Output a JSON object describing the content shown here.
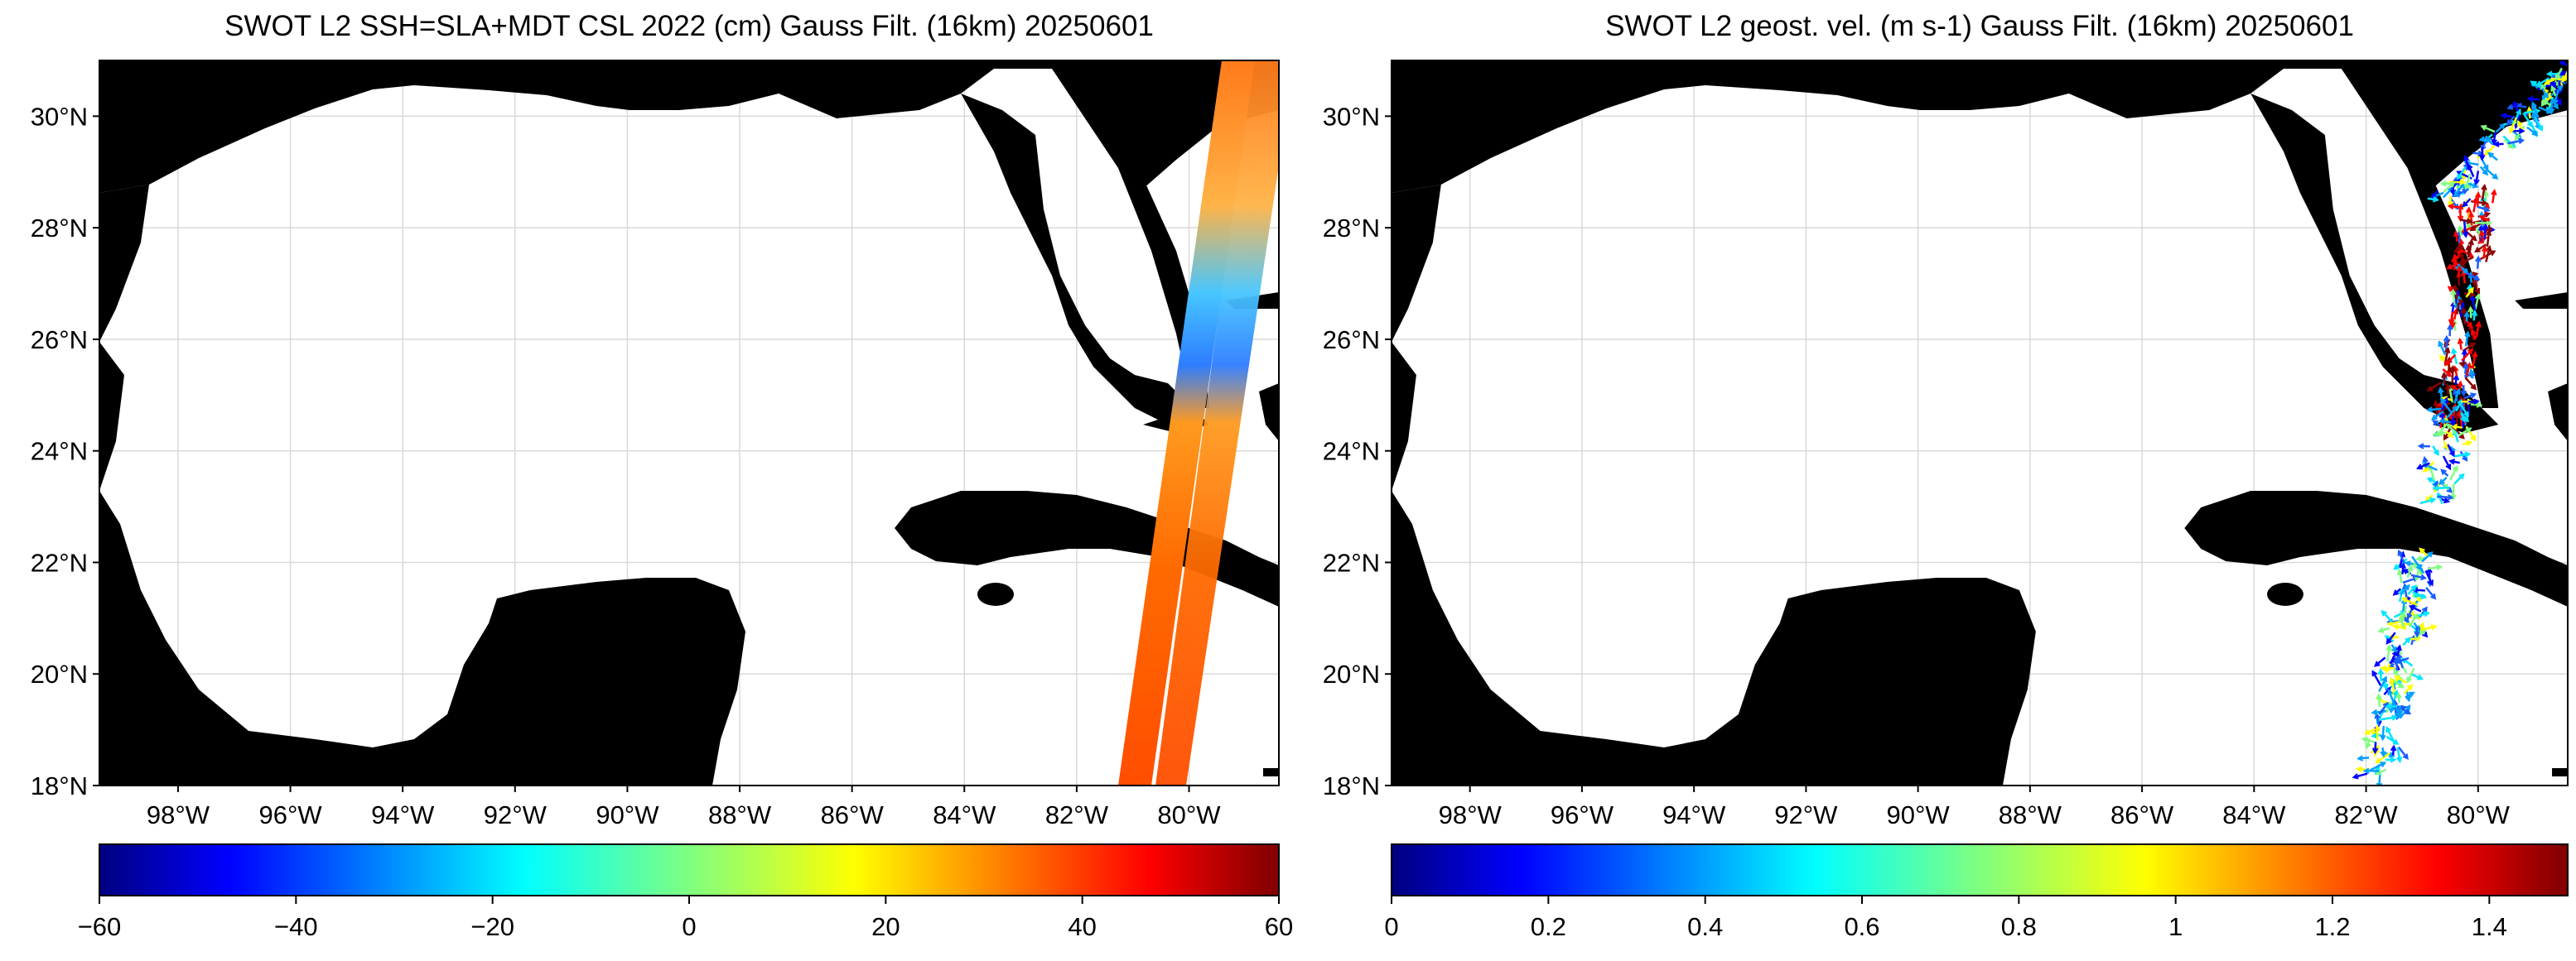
{
  "panels": [
    {
      "title": "SWOT L2 SSH=SLA+MDT CSL 2022 (cm) Gauss Filt. (16km) 20250601",
      "colorbar_ticks": [
        "−60",
        "−40",
        "−20",
        "0",
        "20",
        "40",
        "60"
      ],
      "colorbar_range": [
        -60,
        60
      ]
    },
    {
      "title": "SWOT L2 geost. vel. (m s-1) Gauss Filt. (16km) 20250601",
      "colorbar_ticks": [
        "0",
        "0.2",
        "0.4",
        "0.6",
        "0.8",
        "1",
        "1.2",
        "1.4"
      ],
      "colorbar_range": [
        0,
        1.5
      ]
    }
  ],
  "lat_labels": [
    "30°N",
    "28°N",
    "26°N",
    "24°N",
    "22°N",
    "20°N",
    "18°N"
  ],
  "lon_labels": [
    "98°W",
    "96°W",
    "94°W",
    "92°W",
    "90°W",
    "88°W",
    "86°W",
    "84°W",
    "82°W",
    "80°W"
  ],
  "map_extent": {
    "lon": [
      -99.4,
      -78.4
    ],
    "lat": [
      18,
      31
    ]
  },
  "colormap": "jet",
  "colors": {
    "land": "#000000",
    "ocean": "#ffffff",
    "grid": "#d9d9d9"
  }
}
